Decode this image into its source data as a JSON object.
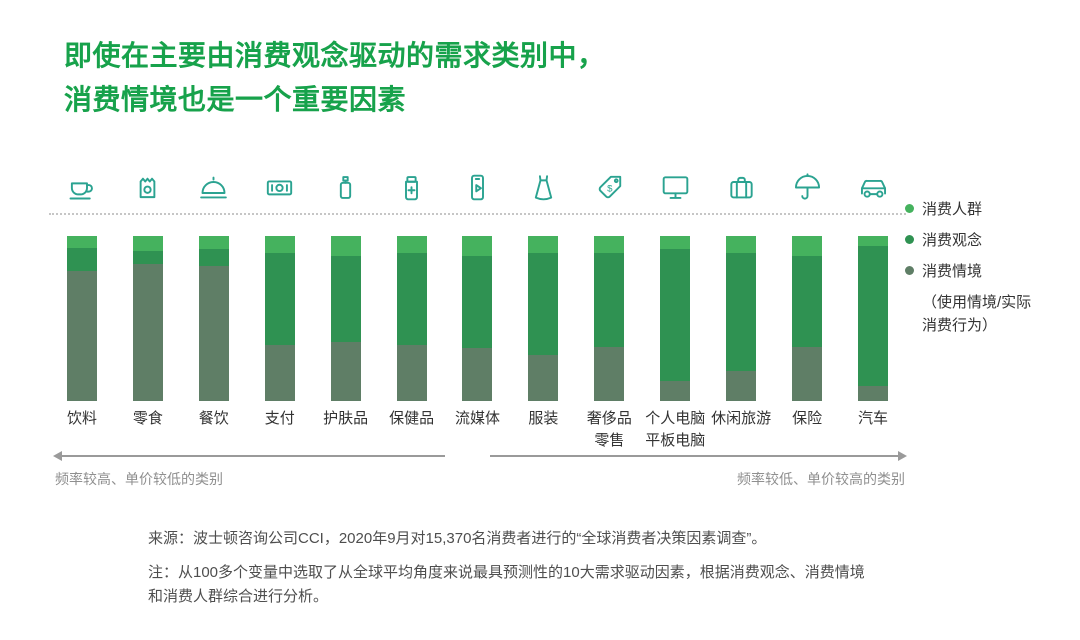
{
  "title": {
    "lines": [
      "即使在主要由消费观念驱动的需求类别中，",
      "消费情境也是一个重要因素"
    ],
    "color": "#17a24b"
  },
  "colors": {
    "icon": "#2ba391",
    "dotted_line": "#c6c6c6",
    "arrow": "#9a9a9a"
  },
  "chart_data": {
    "type": "bar",
    "stacked": true,
    "value_format": "share_of_100_percent_estimated",
    "title": "即使在主要由消费观念驱动的需求类别中，消费情境也是一个重要因素",
    "categories": [
      "饮料",
      "零食",
      "餐饮",
      "支付",
      "护肤品",
      "保健品",
      "流媒体",
      "服装",
      "奢侈品零售",
      "个人电脑平板电脑",
      "休闲旅游",
      "保险",
      "汽车"
    ],
    "categories_display": [
      "饮料",
      "零食",
      "餐饮",
      "支付",
      "护肤品",
      "保健品",
      "流媒体",
      "服装",
      "奢侈品\n零售",
      "个人电脑\n平板电脑",
      "休闲旅游",
      "保险",
      "汽车"
    ],
    "icons": [
      "coffee-cup",
      "snack-bag",
      "cloche",
      "banknotes",
      "spray-bottle",
      "medicine-bottle",
      "phone-streaming",
      "dress",
      "price-tag",
      "monitor",
      "suitcase",
      "umbrella",
      "car"
    ],
    "series": [
      {
        "key": "people",
        "name": "消费人群",
        "color": "#45b25e",
        "values": [
          7,
          9,
          8,
          10,
          12,
          10,
          12,
          10,
          10,
          8,
          10,
          12,
          6
        ]
      },
      {
        "key": "attitude",
        "name": "消费观念",
        "color": "#2f9252",
        "values": [
          14,
          8,
          10,
          56,
          52,
          56,
          56,
          62,
          57,
          80,
          72,
          55,
          85
        ]
      },
      {
        "key": "context",
        "name": "消费情境（使用情境/实际消费行为）",
        "color": "#5f7e66",
        "values": [
          79,
          83,
          82,
          34,
          36,
          34,
          32,
          28,
          33,
          12,
          18,
          33,
          9
        ]
      }
    ],
    "ylim": [
      0,
      100
    ],
    "grid": false,
    "legend_position": "right",
    "annotations": {
      "left": "频率较高、单价较低的类别",
      "right": "频率较低、单价较高的类别"
    }
  },
  "legend": {
    "items": [
      {
        "label": "消费人群",
        "color": "#45b25e"
      },
      {
        "label": "消费观念",
        "color": "#2f9252"
      },
      {
        "label": "消费情境",
        "color": "#5f7e66",
        "sublines": [
          "（使用情境/实际",
          "消费行为）"
        ]
      }
    ]
  },
  "footer": {
    "source": "来源：波士顿咨询公司CCI，2020年9月对15,370名消费者进行的“全球消费者决策因素调查”。",
    "note": "注：从100多个变量中选取了从全球平均角度来说最具预测性的10大需求驱动因素，根据消费观念、消费情境\n和消费人群综合进行分析。"
  }
}
